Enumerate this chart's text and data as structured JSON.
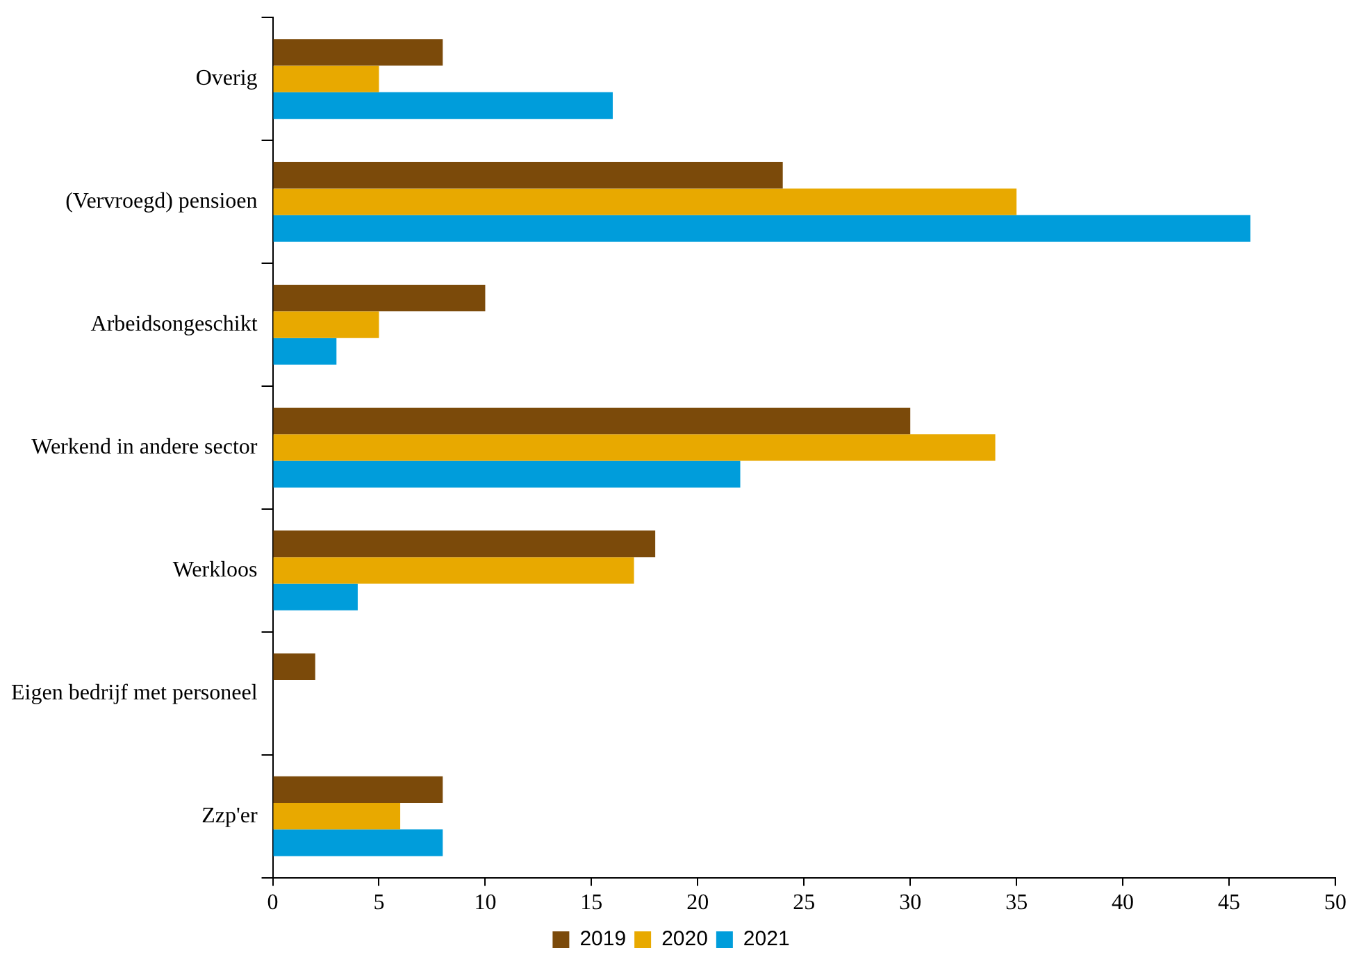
{
  "chart_data": {
    "type": "bar",
    "orientation": "horizontal",
    "categories": [
      "Overig",
      "(Vervroegd) pensioen",
      "Arbeidsongeschikt",
      "Werkend in andere sector",
      "Werkloos",
      "Eigen bedrijf met personeel",
      "Zzp'er"
    ],
    "series": [
      {
        "name": "2019",
        "color": "#7b4a0a",
        "values": [
          8,
          24,
          10,
          30,
          18,
          2,
          8
        ]
      },
      {
        "name": "2020",
        "color": "#e8a900",
        "values": [
          5,
          35,
          5,
          34,
          17,
          0,
          6
        ]
      },
      {
        "name": "2021",
        "color": "#009ddb",
        "values": [
          16,
          46,
          3,
          22,
          4,
          0,
          8
        ]
      }
    ],
    "xlim": [
      0,
      50
    ],
    "xticks": [
      0,
      5,
      10,
      15,
      20,
      25,
      30,
      35,
      40,
      45,
      50
    ],
    "grid": false,
    "legend": "bottom"
  }
}
